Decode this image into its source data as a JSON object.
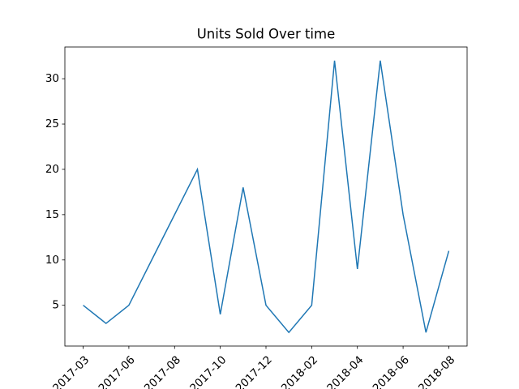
{
  "chart_data": {
    "type": "line",
    "title": "Units Sold Over time",
    "categories": [
      "2017-03",
      null,
      "2017-06",
      null,
      "2017-08",
      null,
      "2017-10",
      null,
      "2017-12",
      null,
      "2018-02",
      null,
      "2018-04",
      null,
      "2018-06",
      null,
      "2018-08"
    ],
    "series": [
      {
        "name": "Units Sold",
        "color": "#1f77b4",
        "values": [
          5,
          3,
          5,
          10,
          15,
          20,
          4,
          18,
          5,
          2,
          5,
          32,
          9,
          32,
          15,
          2,
          11
        ]
      }
    ],
    "ylim": [
      0.5,
      33.5
    ],
    "yticks": [
      5,
      10,
      15,
      20,
      25,
      30
    ],
    "grid": false
  }
}
